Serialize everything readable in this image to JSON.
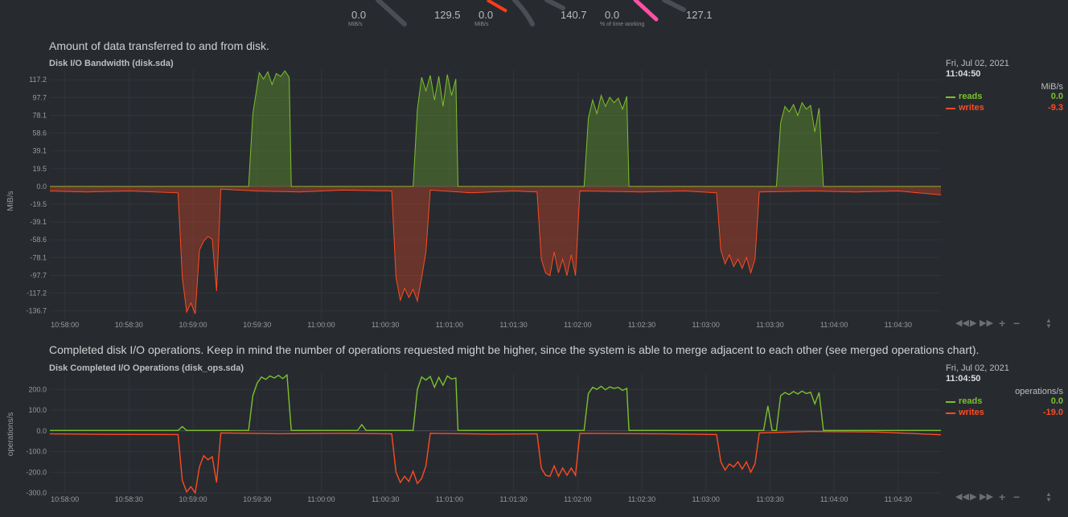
{
  "gauges": [
    {
      "value": "0.0",
      "unit": "MiB/s",
      "max": "129.5"
    },
    {
      "value": "0.0",
      "unit": "MiB/s",
      "max": "140.7"
    },
    {
      "value": "0.0",
      "unit": "% of time working",
      "max": "127.1"
    }
  ],
  "charts": [
    {
      "description": "Amount of data transferred to and from disk.",
      "title": "Disk I/O Bandwidth (disk.sda)",
      "legend": {
        "date": "Fri, Jul 02, 2021",
        "time": "11:04:50",
        "unit": "MiB/s",
        "series": [
          {
            "name": "reads",
            "value": "0.0",
            "color": "#7cc12c"
          },
          {
            "name": "writes",
            "value": "-9.3",
            "color": "#ff4a21"
          }
        ]
      }
    },
    {
      "description": "Completed disk I/O operations. Keep in mind the number of operations requested might be higher, since the system is able to merge adjacent to each other (see merged operations chart).",
      "title": "Disk Completed I/O Operations (disk_ops.sda)",
      "legend": {
        "date": "Fri, Jul 02, 2021",
        "time": "11:04:50",
        "unit": "operations/s",
        "series": [
          {
            "name": "reads",
            "value": "0.0",
            "color": "#7cc12c"
          },
          {
            "name": "writes",
            "value": "-19.0",
            "color": "#ff4a21"
          }
        ]
      }
    }
  ],
  "chart_data": [
    {
      "type": "area",
      "title": "Disk I/O Bandwidth (disk.sda)",
      "ylabel": "MiB/s",
      "ylim": [
        -145,
        128
      ],
      "xlim": [
        "10:57:53",
        "11:04:50"
      ],
      "y_ticks": [
        "117.2",
        "97.7",
        "78.1",
        "58.6",
        "39.1",
        "19.5",
        "0.0",
        "-19.5",
        "-39.1",
        "-58.6",
        "-78.1",
        "-97.7",
        "-117.2",
        "-136.7"
      ],
      "y_tick_values": [
        117.2,
        97.7,
        78.1,
        58.6,
        39.1,
        19.5,
        0,
        -19.5,
        -39.1,
        -58.6,
        -78.1,
        -97.7,
        -117.2,
        -136.7
      ],
      "x_ticks": [
        "10:58:00",
        "10:58:30",
        "10:59:00",
        "10:59:30",
        "11:00:00",
        "11:00:30",
        "11:01:00",
        "11:01:30",
        "11:02:00",
        "11:02:30",
        "11:03:00",
        "11:03:30",
        "11:04:00",
        "11:04:30"
      ],
      "grid": true,
      "series": [
        {
          "name": "reads",
          "color": "#7cc12c",
          "fill": true,
          "points": [
            [
              "10:57:53",
              0
            ],
            [
              "10:59:26",
              0
            ],
            [
              "10:59:28",
              80
            ],
            [
              "10:59:30",
              110
            ],
            [
              "10:59:31",
              125
            ],
            [
              "10:59:33",
              118
            ],
            [
              "10:59:35",
              126
            ],
            [
              "10:59:37",
              112
            ],
            [
              "10:59:39",
              124
            ],
            [
              "10:59:41",
              121
            ],
            [
              "10:59:43",
              127
            ],
            [
              "10:59:45",
              120
            ],
            [
              "10:59:46",
              0
            ],
            [
              "11:00:43",
              0
            ],
            [
              "11:00:45",
              85
            ],
            [
              "11:00:47",
              120
            ],
            [
              "11:00:49",
              105
            ],
            [
              "11:00:51",
              122
            ],
            [
              "11:00:53",
              95
            ],
            [
              "11:00:55",
              121
            ],
            [
              "11:00:57",
              88
            ],
            [
              "11:00:59",
              123
            ],
            [
              "11:01:01",
              100
            ],
            [
              "11:01:03",
              118
            ],
            [
              "11:01:04",
              0
            ],
            [
              "11:02:03",
              0
            ],
            [
              "11:02:05",
              75
            ],
            [
              "11:02:07",
              95
            ],
            [
              "11:02:09",
              80
            ],
            [
              "11:02:11",
              100
            ],
            [
              "11:02:13",
              88
            ],
            [
              "11:02:15",
              98
            ],
            [
              "11:02:17",
              92
            ],
            [
              "11:02:19",
              97
            ],
            [
              "11:02:21",
              85
            ],
            [
              "11:02:23",
              99
            ],
            [
              "11:02:24",
              0
            ],
            [
              "11:03:33",
              0
            ],
            [
              "11:03:35",
              70
            ],
            [
              "11:03:37",
              88
            ],
            [
              "11:03:39",
              82
            ],
            [
              "11:03:41",
              90
            ],
            [
              "11:03:43",
              78
            ],
            [
              "11:03:45",
              92
            ],
            [
              "11:03:47",
              85
            ],
            [
              "11:03:49",
              89
            ],
            [
              "11:03:51",
              60
            ],
            [
              "11:03:53",
              86
            ],
            [
              "11:03:55",
              0
            ],
            [
              "11:04:50",
              0
            ]
          ]
        },
        {
          "name": "writes",
          "color": "#ff4a21",
          "fill": true,
          "points": [
            [
              "10:57:53",
              -5
            ],
            [
              "10:58:10",
              -6
            ],
            [
              "10:58:30",
              -5
            ],
            [
              "10:58:53",
              -7
            ],
            [
              "10:58:55",
              -100
            ],
            [
              "10:58:57",
              -138
            ],
            [
              "10:58:59",
              -128
            ],
            [
              "10:59:01",
              -140
            ],
            [
              "10:59:03",
              -70
            ],
            [
              "10:59:05",
              -60
            ],
            [
              "10:59:07",
              -55
            ],
            [
              "10:59:09",
              -58
            ],
            [
              "10:59:11",
              -115
            ],
            [
              "10:59:13",
              -3
            ],
            [
              "10:59:30",
              -5
            ],
            [
              "10:59:50",
              -6
            ],
            [
              "11:00:10",
              -4
            ],
            [
              "11:00:33",
              -5
            ],
            [
              "11:00:35",
              -100
            ],
            [
              "11:00:37",
              -125
            ],
            [
              "11:00:39",
              -112
            ],
            [
              "11:00:41",
              -122
            ],
            [
              "11:00:43",
              -113
            ],
            [
              "11:00:45",
              -126
            ],
            [
              "11:00:47",
              -100
            ],
            [
              "11:00:49",
              -72
            ],
            [
              "11:00:51",
              -4
            ],
            [
              "11:01:10",
              -7
            ],
            [
              "11:01:30",
              -5
            ],
            [
              "11:01:41",
              -6
            ],
            [
              "11:01:43",
              -80
            ],
            [
              "11:01:45",
              -95
            ],
            [
              "11:01:47",
              -98
            ],
            [
              "11:01:49",
              -72
            ],
            [
              "11:01:51",
              -95
            ],
            [
              "11:01:53",
              -80
            ],
            [
              "11:01:55",
              -98
            ],
            [
              "11:01:57",
              -75
            ],
            [
              "11:01:59",
              -98
            ],
            [
              "11:02:01",
              -5
            ],
            [
              "11:02:30",
              -6
            ],
            [
              "11:02:50",
              -5
            ],
            [
              "11:03:05",
              -7
            ],
            [
              "11:03:07",
              -70
            ],
            [
              "11:03:09",
              -85
            ],
            [
              "11:03:11",
              -75
            ],
            [
              "11:03:13",
              -88
            ],
            [
              "11:03:15",
              -80
            ],
            [
              "11:03:17",
              -90
            ],
            [
              "11:03:19",
              -78
            ],
            [
              "11:03:21",
              -95
            ],
            [
              "11:03:23",
              -80
            ],
            [
              "11:03:25",
              -6
            ],
            [
              "11:03:50",
              -5
            ],
            [
              "11:04:10",
              -6
            ],
            [
              "11:04:30",
              -5
            ],
            [
              "11:04:50",
              -9.3
            ]
          ]
        }
      ]
    },
    {
      "type": "line",
      "title": "Disk Completed I/O Operations (disk_ops.sda)",
      "ylabel": "operations/s",
      "ylim": [
        -300,
        275
      ],
      "xlim": [
        "10:57:53",
        "11:04:50"
      ],
      "y_ticks": [
        "200.0",
        "100.0",
        "0.0",
        "-100.0",
        "-200.0",
        "-300.0"
      ],
      "y_tick_values": [
        200,
        100,
        0,
        -100,
        -200,
        -300
      ],
      "x_ticks": [
        "10:58:00",
        "10:58:30",
        "10:59:00",
        "10:59:30",
        "11:00:00",
        "11:00:30",
        "11:01:00",
        "11:01:30",
        "11:02:00",
        "11:02:30",
        "11:03:00",
        "11:03:30",
        "11:04:00",
        "11:04:30"
      ],
      "grid": true,
      "series": [
        {
          "name": "reads",
          "color": "#7cc12c",
          "fill": false,
          "points": [
            [
              "10:57:53",
              2
            ],
            [
              "10:58:53",
              2
            ],
            [
              "10:58:55",
              20
            ],
            [
              "10:58:57",
              2
            ],
            [
              "10:59:26",
              2
            ],
            [
              "10:59:28",
              170
            ],
            [
              "10:59:30",
              230
            ],
            [
              "10:59:32",
              260
            ],
            [
              "10:59:34",
              248
            ],
            [
              "10:59:36",
              265
            ],
            [
              "10:59:38",
              255
            ],
            [
              "10:59:40",
              268
            ],
            [
              "10:59:42",
              252
            ],
            [
              "10:59:44",
              270
            ],
            [
              "10:59:46",
              2
            ],
            [
              "11:00:17",
              2
            ],
            [
              "11:00:19",
              30
            ],
            [
              "11:00:21",
              2
            ],
            [
              "11:00:43",
              2
            ],
            [
              "11:00:45",
              200
            ],
            [
              "11:00:47",
              260
            ],
            [
              "11:00:49",
              245
            ],
            [
              "11:00:51",
              262
            ],
            [
              "11:00:53",
              210
            ],
            [
              "11:00:55",
              258
            ],
            [
              "11:00:57",
              220
            ],
            [
              "11:00:59",
              265
            ],
            [
              "11:01:01",
              250
            ],
            [
              "11:01:03",
              255
            ],
            [
              "11:01:04",
              2
            ],
            [
              "11:02:03",
              2
            ],
            [
              "11:02:05",
              180
            ],
            [
              "11:02:07",
              210
            ],
            [
              "11:02:09",
              200
            ],
            [
              "11:02:11",
              215
            ],
            [
              "11:02:13",
              198
            ],
            [
              "11:02:15",
              212
            ],
            [
              "11:02:17",
              205
            ],
            [
              "11:02:19",
              210
            ],
            [
              "11:02:21",
              195
            ],
            [
              "11:02:23",
              205
            ],
            [
              "11:02:24",
              2
            ],
            [
              "11:03:27",
              2
            ],
            [
              "11:03:29",
              120
            ],
            [
              "11:03:31",
              2
            ],
            [
              "11:03:33",
              2
            ],
            [
              "11:03:35",
              170
            ],
            [
              "11:03:37",
              185
            ],
            [
              "11:03:39",
              175
            ],
            [
              "11:03:41",
              190
            ],
            [
              "11:03:43",
              178
            ],
            [
              "11:03:45",
              192
            ],
            [
              "11:03:47",
              180
            ],
            [
              "11:03:49",
              186
            ],
            [
              "11:03:51",
              130
            ],
            [
              "11:03:53",
              185
            ],
            [
              "11:03:55",
              2
            ],
            [
              "11:04:50",
              2
            ]
          ]
        },
        {
          "name": "writes",
          "color": "#ff4a21",
          "fill": false,
          "points": [
            [
              "10:57:53",
              -15
            ],
            [
              "10:58:20",
              -17
            ],
            [
              "10:58:53",
              -18
            ],
            [
              "10:58:55",
              -240
            ],
            [
              "10:58:57",
              -295
            ],
            [
              "10:58:59",
              -270
            ],
            [
              "10:59:01",
              -300
            ],
            [
              "10:59:03",
              -175
            ],
            [
              "10:59:05",
              -120
            ],
            [
              "10:59:07",
              -140
            ],
            [
              "10:59:09",
              -125
            ],
            [
              "10:59:11",
              -250
            ],
            [
              "10:59:13",
              -10
            ],
            [
              "10:59:40",
              -14
            ],
            [
              "11:00:10",
              -12
            ],
            [
              "11:00:33",
              -15
            ],
            [
              "11:00:35",
              -200
            ],
            [
              "11:00:37",
              -250
            ],
            [
              "11:00:39",
              -220
            ],
            [
              "11:00:41",
              -245
            ],
            [
              "11:00:43",
              -195
            ],
            [
              "11:00:45",
              -255
            ],
            [
              "11:00:47",
              -230
            ],
            [
              "11:00:49",
              -170
            ],
            [
              "11:00:51",
              -12
            ],
            [
              "11:01:20",
              -16
            ],
            [
              "11:01:41",
              -15
            ],
            [
              "11:01:43",
              -180
            ],
            [
              "11:01:45",
              -215
            ],
            [
              "11:01:47",
              -220
            ],
            [
              "11:01:49",
              -170
            ],
            [
              "11:01:51",
              -220
            ],
            [
              "11:01:53",
              -180
            ],
            [
              "11:01:55",
              -215
            ],
            [
              "11:01:57",
              -180
            ],
            [
              "11:01:59",
              -215
            ],
            [
              "11:02:01",
              -12
            ],
            [
              "11:02:40",
              -15
            ],
            [
              "11:03:05",
              -18
            ],
            [
              "11:03:07",
              -150
            ],
            [
              "11:03:09",
              -190
            ],
            [
              "11:03:11",
              -160
            ],
            [
              "11:03:13",
              -175
            ],
            [
              "11:03:15",
              -150
            ],
            [
              "11:03:17",
              -185
            ],
            [
              "11:03:19",
              -150
            ],
            [
              "11:03:21",
              -200
            ],
            [
              "11:03:23",
              -160
            ],
            [
              "11:03:25",
              -10
            ],
            [
              "11:03:50",
              -3
            ],
            [
              "11:04:20",
              -6
            ],
            [
              "11:04:50",
              -19
            ]
          ]
        }
      ]
    }
  ]
}
